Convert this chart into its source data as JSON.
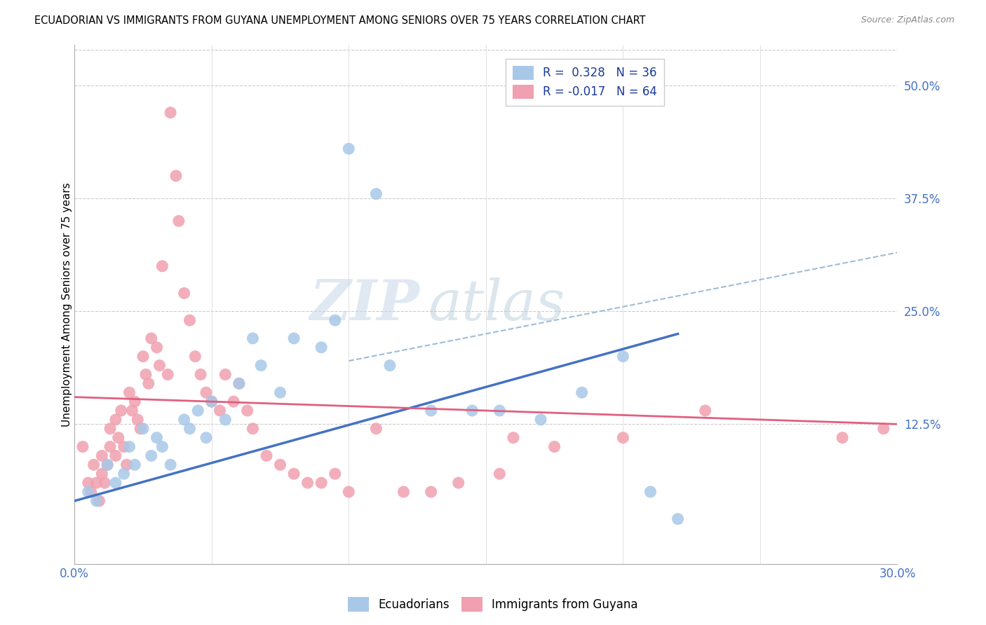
{
  "title": "ECUADORIAN VS IMMIGRANTS FROM GUYANA UNEMPLOYMENT AMONG SENIORS OVER 75 YEARS CORRELATION CHART",
  "source": "Source: ZipAtlas.com",
  "ylabel": "Unemployment Among Seniors over 75 years",
  "ytick_labels": [
    "50.0%",
    "37.5%",
    "25.0%",
    "12.5%"
  ],
  "ytick_values": [
    0.5,
    0.375,
    0.25,
    0.125
  ],
  "xlim": [
    0.0,
    0.3
  ],
  "ylim": [
    -0.03,
    0.545
  ],
  "legend_label1": "Ecuadorians",
  "legend_label2": "Immigrants from Guyana",
  "r1": 0.328,
  "n1": 36,
  "r2": -0.017,
  "n2": 64,
  "color_blue": "#A8C8E8",
  "color_pink": "#F0A0B0",
  "color_blue_line": "#4472C4",
  "color_pink_line": "#E06080",
  "color_dashed": "#A0BCD8",
  "watermark_zip": "ZIP",
  "watermark_atlas": "atlas",
  "blue_scatter_x": [
    0.005,
    0.008,
    0.012,
    0.015,
    0.018,
    0.02,
    0.022,
    0.025,
    0.028,
    0.03,
    0.032,
    0.035,
    0.04,
    0.042,
    0.045,
    0.048,
    0.05,
    0.055,
    0.06,
    0.065,
    0.068,
    0.075,
    0.08,
    0.09,
    0.095,
    0.1,
    0.11,
    0.115,
    0.13,
    0.145,
    0.155,
    0.17,
    0.185,
    0.2,
    0.21,
    0.22
  ],
  "blue_scatter_y": [
    0.05,
    0.04,
    0.08,
    0.06,
    0.07,
    0.1,
    0.08,
    0.12,
    0.09,
    0.11,
    0.1,
    0.08,
    0.13,
    0.12,
    0.14,
    0.11,
    0.15,
    0.13,
    0.17,
    0.22,
    0.19,
    0.16,
    0.22,
    0.21,
    0.24,
    0.43,
    0.38,
    0.19,
    0.14,
    0.14,
    0.14,
    0.13,
    0.16,
    0.2,
    0.05,
    0.02
  ],
  "pink_scatter_x": [
    0.003,
    0.005,
    0.006,
    0.007,
    0.008,
    0.009,
    0.01,
    0.01,
    0.011,
    0.012,
    0.013,
    0.013,
    0.015,
    0.015,
    0.016,
    0.017,
    0.018,
    0.019,
    0.02,
    0.021,
    0.022,
    0.023,
    0.024,
    0.025,
    0.026,
    0.027,
    0.028,
    0.03,
    0.031,
    0.032,
    0.034,
    0.035,
    0.037,
    0.038,
    0.04,
    0.042,
    0.044,
    0.046,
    0.048,
    0.05,
    0.053,
    0.055,
    0.058,
    0.06,
    0.063,
    0.065,
    0.07,
    0.075,
    0.08,
    0.085,
    0.09,
    0.095,
    0.1,
    0.11,
    0.12,
    0.13,
    0.14,
    0.155,
    0.16,
    0.175,
    0.2,
    0.23,
    0.28,
    0.295
  ],
  "pink_scatter_y": [
    0.1,
    0.06,
    0.05,
    0.08,
    0.06,
    0.04,
    0.07,
    0.09,
    0.06,
    0.08,
    0.1,
    0.12,
    0.09,
    0.13,
    0.11,
    0.14,
    0.1,
    0.08,
    0.16,
    0.14,
    0.15,
    0.13,
    0.12,
    0.2,
    0.18,
    0.17,
    0.22,
    0.21,
    0.19,
    0.3,
    0.18,
    0.47,
    0.4,
    0.35,
    0.27,
    0.24,
    0.2,
    0.18,
    0.16,
    0.15,
    0.14,
    0.18,
    0.15,
    0.17,
    0.14,
    0.12,
    0.09,
    0.08,
    0.07,
    0.06,
    0.06,
    0.07,
    0.05,
    0.12,
    0.05,
    0.05,
    0.06,
    0.07,
    0.11,
    0.1,
    0.11,
    0.14,
    0.11,
    0.12
  ],
  "blue_line_x": [
    0.0,
    0.22
  ],
  "blue_line_y": [
    0.04,
    0.225
  ],
  "pink_line_x": [
    0.0,
    0.3
  ],
  "pink_line_y": [
    0.155,
    0.125
  ],
  "dash_line_x": [
    0.1,
    0.3
  ],
  "dash_line_y": [
    0.195,
    0.315
  ]
}
